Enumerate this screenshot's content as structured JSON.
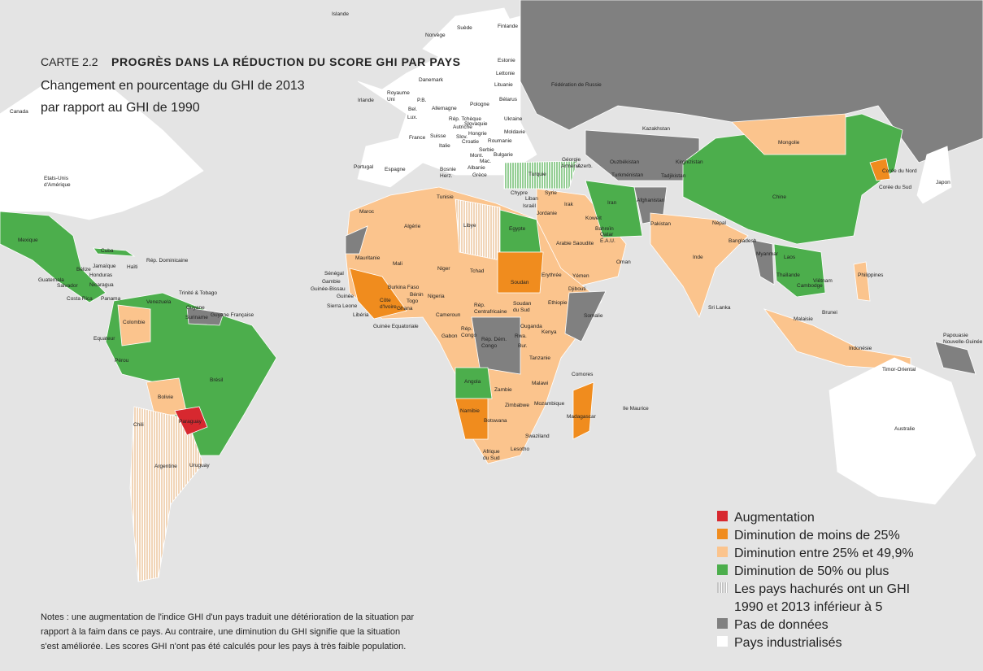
{
  "header": {
    "number": "CARTE 2.2",
    "title": "PROGRÈS DANS LA RÉDUCTION DU SCORE GHI PAR PAYS",
    "subtitle": [
      "Changement en pourcentage du GHI de 2013",
      "par rapport au GHI de 1990"
    ]
  },
  "legend": [
    {
      "label": [
        "Augmentation"
      ],
      "color": "#d7282f"
    },
    {
      "label": [
        "Diminution de moins de 25%"
      ],
      "color": "#f08c1e"
    },
    {
      "label": [
        "Diminution entre 25% et 49,9%"
      ],
      "color": "#fbc48d"
    },
    {
      "label": [
        "Diminution de 50% ou plus"
      ],
      "color": "#4cae4c"
    },
    {
      "label": [
        "Les pays hachurés ont un GHI",
        "1990 et 2013 inférieur à 5"
      ],
      "color": "#8a8a8a",
      "pattern": "hatched"
    },
    {
      "label": [
        "Pas de données"
      ],
      "color": "#808080"
    },
    {
      "label": [
        "Pays industrialisés"
      ],
      "color": "#ffffff"
    }
  ],
  "notes": [
    "Notes : une augmentation de l'indice GHI d'un pays traduit une détérioration de la situation par",
    "rapport à la faim dans ce pays. Au contraire, une diminution du GHI signifie que la situation",
    "s'est améliorée. Les scores GHI n'ont pas été calculés pour les pays à très faible population."
  ],
  "country_labels": [
    [
      "Islande"
    ],
    [
      "Norvège"
    ],
    [
      "Suède"
    ],
    [
      "Finlande"
    ],
    [
      "Estonie"
    ],
    [
      "Lettonie"
    ],
    [
      "Lituanie"
    ],
    [
      "Bélarus"
    ],
    [
      "Fédération de Russie"
    ],
    [
      "Danemark"
    ],
    [
      "Irlande"
    ],
    [
      "Royaume",
      "Uni"
    ],
    [
      "P.B."
    ],
    [
      "Allemagne"
    ],
    [
      "Pologne"
    ],
    [
      "Bel."
    ],
    [
      "Lux."
    ],
    [
      "Rép. Tchèque"
    ],
    [
      "Slovaquie"
    ],
    [
      "Ukraine"
    ],
    [
      "Autriche"
    ],
    [
      "Hongrie"
    ],
    [
      "Moldavie"
    ],
    [
      "France"
    ],
    [
      "Suisse"
    ],
    [
      "Slov."
    ],
    [
      "Croatie"
    ],
    [
      "Roumanie"
    ],
    [
      "Italie"
    ],
    [
      "Serbie"
    ],
    [
      "Mont."
    ],
    [
      "Mac."
    ],
    [
      "Bulgarie"
    ],
    [
      "Bosnie",
      "Herz."
    ],
    [
      "Albanie"
    ],
    [
      "Grèce"
    ],
    [
      "Portugal"
    ],
    [
      "Espagne"
    ],
    [
      "Turquie"
    ],
    [
      "Géorgie"
    ],
    [
      "Arménie"
    ],
    [
      "Azerb."
    ],
    [
      "Kazakhstan"
    ],
    [
      "Mongolie"
    ],
    [
      "Ouzbékistan"
    ],
    [
      "Kirghizistan"
    ],
    [
      "Turkménistan"
    ],
    [
      "Tadjikistan"
    ],
    [
      "Corée du Nord"
    ],
    [
      "Corée du Sud"
    ],
    [
      "Japon"
    ],
    [
      "Chine"
    ],
    [
      "Canada"
    ],
    [
      "Etats-Unis",
      "d'Amérique"
    ],
    [
      "Chypre"
    ],
    [
      "Syrie"
    ],
    [
      "Liban"
    ],
    [
      "Israël"
    ],
    [
      "Irak"
    ],
    [
      "Iran"
    ],
    [
      "Afghanistan"
    ],
    [
      "Jordanie"
    ],
    [
      "Koweït"
    ],
    [
      "Tunisie"
    ],
    [
      "Maroc"
    ],
    [
      "Algérie"
    ],
    [
      "Libye"
    ],
    [
      "Egypte"
    ],
    [
      "Bahreïn"
    ],
    [
      "Qatar"
    ],
    [
      "E.A.U."
    ],
    [
      "Pakistan"
    ],
    [
      "Népal"
    ],
    [
      "Bangladesh"
    ],
    [
      "Inde"
    ],
    [
      "Arabie Saoudite"
    ],
    [
      "Oman"
    ],
    [
      "Mexique"
    ],
    [
      "Mauritanie"
    ],
    [
      "Mali"
    ],
    [
      "Niger"
    ],
    [
      "Tchad"
    ],
    [
      "Soudan"
    ],
    [
      "Erythrée"
    ],
    [
      "Yémen"
    ],
    [
      "Djibouti"
    ],
    [
      "Myanmar"
    ],
    [
      "Laos"
    ],
    [
      "Thaïlande"
    ],
    [
      "Viêtnam"
    ],
    [
      "Cambodge"
    ],
    [
      "Philippines"
    ],
    [
      "Cuba"
    ],
    [
      "Bélize"
    ],
    [
      "Jamaïque"
    ],
    [
      "Haïti"
    ],
    [
      "Rép. Dominicaine"
    ],
    [
      "Honduras"
    ],
    [
      "Guatemala"
    ],
    [
      "Salvador"
    ],
    [
      "Nicaragua"
    ],
    [
      "Costa Rica"
    ],
    [
      "Panama"
    ],
    [
      "Sénégal"
    ],
    [
      "Gambie"
    ],
    [
      "Guinée-Bissau"
    ],
    [
      "Guinée"
    ],
    [
      "Sierra Leone"
    ],
    [
      "Libéria"
    ],
    [
      "Côte",
      "d'Ivoire"
    ],
    [
      "Burkina Faso"
    ],
    [
      "Bénin"
    ],
    [
      "Togo"
    ],
    [
      "Ghana"
    ],
    [
      "Nigeria"
    ],
    [
      "Cameroun"
    ],
    [
      "Rép.",
      "Centrafricaine"
    ],
    [
      "Soudan",
      "du Sud"
    ],
    [
      "Ethiopie"
    ],
    [
      "Somalie"
    ],
    [
      "Trinité & Tobago"
    ],
    [
      "Venezuela"
    ],
    [
      "Guyane"
    ],
    [
      "Suriname"
    ],
    [
      "Guyane Française"
    ],
    [
      "Sri Lanka"
    ],
    [
      "Malaisie"
    ],
    [
      "Brunei"
    ],
    [
      "Colombie"
    ],
    [
      "Equateur"
    ],
    [
      "Guinée Equatoriale"
    ],
    [
      "Gabon"
    ],
    [
      "Rép.",
      "Congo"
    ],
    [
      "Ouganda"
    ],
    [
      "Kenya"
    ],
    [
      "Rép. Dém.",
      "Congo"
    ],
    [
      "Rwa."
    ],
    [
      "Bur."
    ],
    [
      "Papouasie",
      "Nouvelle-Guinée"
    ],
    [
      "Indonésie"
    ],
    [
      "Tanzanie"
    ],
    [
      "Pérou"
    ],
    [
      "Timor-Oriental"
    ],
    [
      "Brésil"
    ],
    [
      "Comores"
    ],
    [
      "Angola"
    ],
    [
      "Malawi"
    ],
    [
      "Zambie"
    ],
    [
      "Bolivie"
    ],
    [
      "Mozambique"
    ],
    [
      "Zimbabwe"
    ],
    [
      "Ile Maurice"
    ],
    [
      "Namibie"
    ],
    [
      "Madagascar"
    ],
    [
      "Botswana"
    ],
    [
      "Paraguay"
    ],
    [
      "Chili"
    ],
    [
      "Australie"
    ],
    [
      "Swaziland"
    ],
    [
      "Lesotho"
    ],
    [
      "Afrique",
      "du Sud"
    ],
    [
      "Argentine"
    ],
    [
      "Uruguay"
    ]
  ]
}
